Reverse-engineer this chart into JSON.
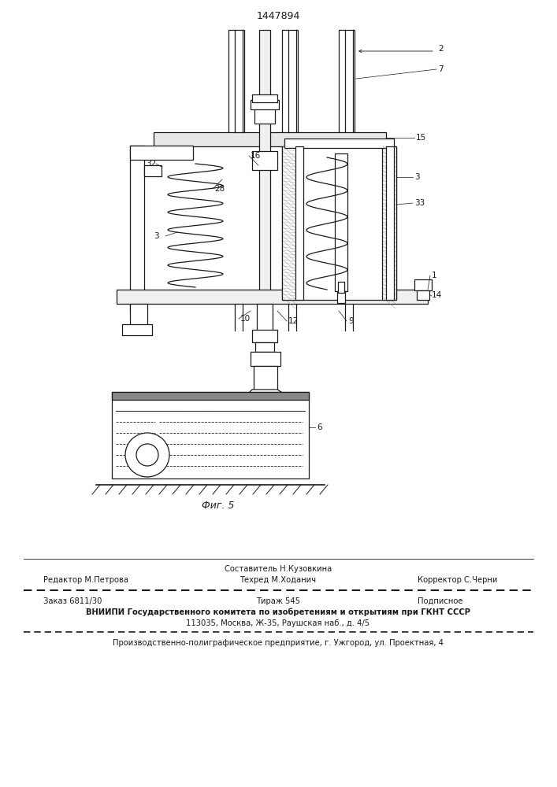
{
  "patent_number": "1447894",
  "bg_color": "#ffffff",
  "line_color": "#1a1a1a",
  "fig_label": "Фиг. 5",
  "footer": {
    "col2_line1": "Составитель Н.Кузовкина",
    "col1_line2": "Редактор М.Петрова",
    "col2_line2": "Техред М.Ходанич",
    "col3_line2": "Корректор С.Черни",
    "row2_col1": "Заказ 6811/30",
    "row2_col2": "Тираж 545",
    "row2_col3": "Подписное",
    "row3": "ВНИИПИ Государственного комитета по изобретениям и открытиям при ГКНТ СССР",
    "row4": "113035, Москва, Ж-35, Раушская наб., д. 4/5",
    "row5": "Производственно-полиграфическое предприятие, г. Ужгород, ул. Проектная, 4"
  }
}
